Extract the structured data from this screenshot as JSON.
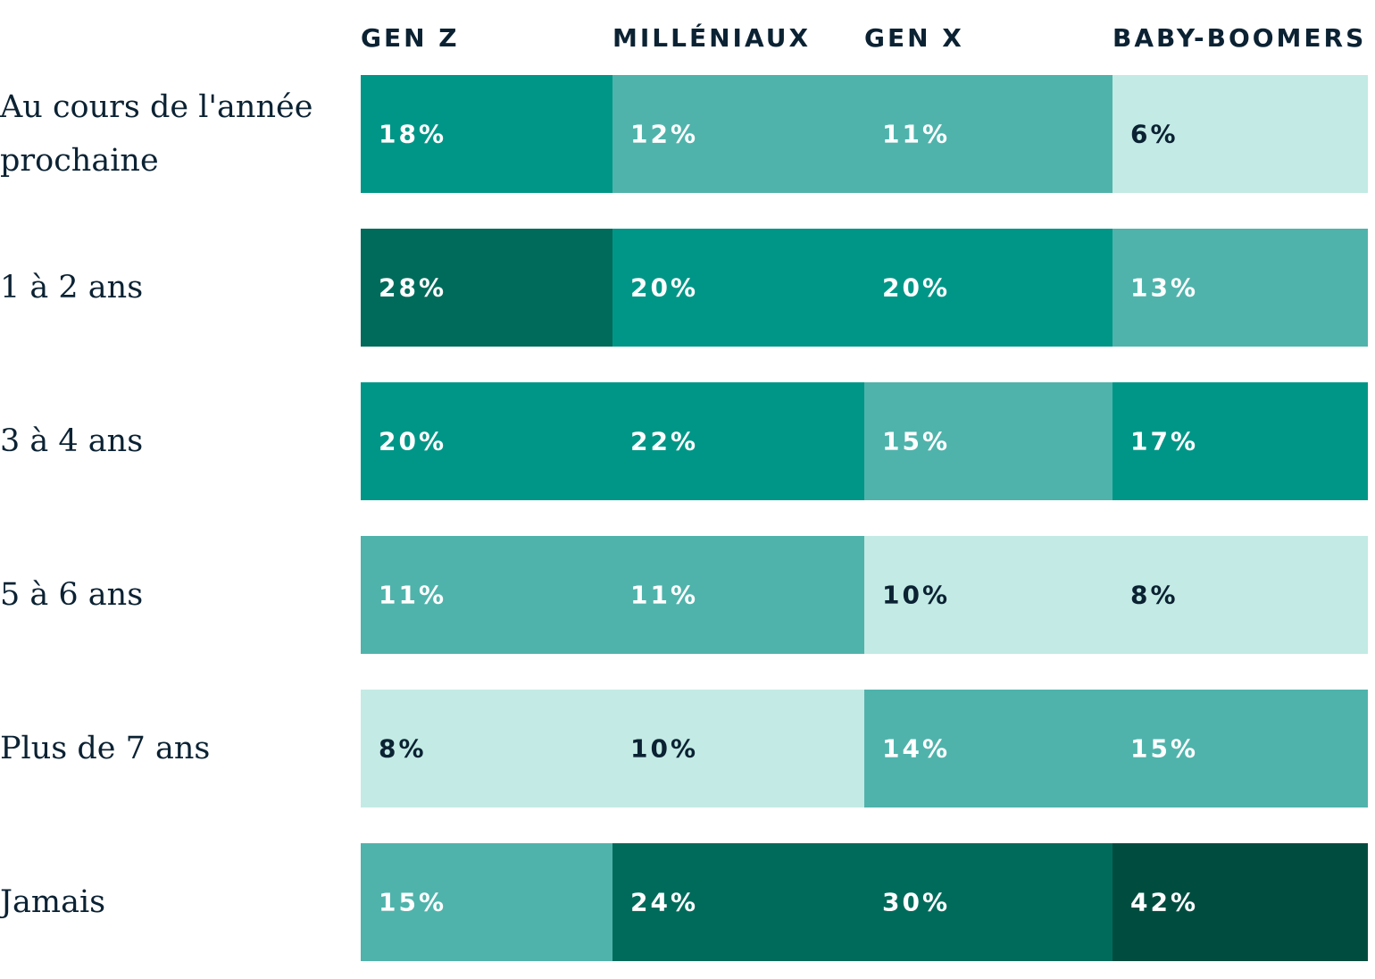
{
  "chart_data": {
    "type": "heatmap",
    "columns": [
      "GEN Z",
      "MILLÉNIAUX",
      "GEN X",
      "BABY-BOOMERS"
    ],
    "rows": [
      "Au cours de l'année prochaine",
      "1 à 2 ans",
      "3 à 4 ans",
      "5 à 6 ans",
      "Plus de 7 ans",
      "Jamais"
    ],
    "values": [
      [
        18,
        12,
        11,
        6
      ],
      [
        28,
        20,
        20,
        13
      ],
      [
        20,
        22,
        15,
        17
      ],
      [
        11,
        11,
        10,
        8
      ],
      [
        8,
        10,
        14,
        15
      ],
      [
        15,
        24,
        30,
        42
      ]
    ],
    "unit": "%",
    "colors": {
      "lightest": "#c3eae4",
      "light": "#4fb3ab",
      "mid": "#009687",
      "dark": "#006b5b",
      "darkest": "#004d40",
      "text_dark": "#0b2233",
      "text_light": "#ffffff"
    }
  }
}
